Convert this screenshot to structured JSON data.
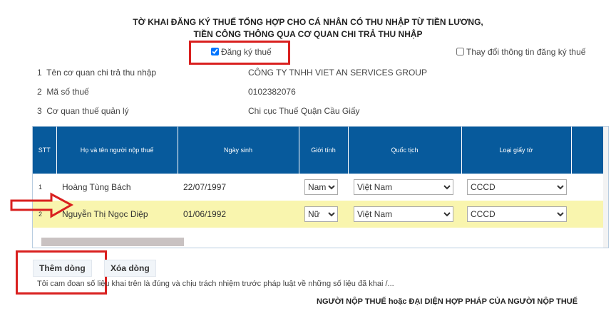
{
  "title": [
    "TỜ KHAI ĐĂNG KÝ THUẾ TỔNG HỢP CHO CÁ NHÂN CÓ THU NHẬP TỪ TIỀN LƯƠNG,",
    "TIỀN CÔNG THÔNG QUA CƠ QUAN CHI TRẢ THU NHẬP"
  ],
  "register": {
    "label": "Đăng ký thuế",
    "checked": true
  },
  "change": {
    "label": "Thay đổi thông tin đăng ký thuế",
    "checked": false
  },
  "info": [
    {
      "no": "1",
      "label": "Tên cơ quan chi trả thu nhập",
      "value": "CÔNG TY TNHH VIET AN SERVICES GROUP"
    },
    {
      "no": "2",
      "label": "Mã số thuế",
      "value": "0102382076"
    },
    {
      "no": "3",
      "label": "Cơ quan thuế quản lý",
      "value": "Chi cục Thuế Quận Cầu Giấy"
    }
  ],
  "table": {
    "headers": [
      "STT",
      "Họ và tên người nộp thuế",
      "Ngày sinh",
      "Giới tính",
      "Quốc tịch",
      "Loại giấy tờ"
    ],
    "rows": [
      {
        "stt": "1",
        "name": "Hoàng Tùng Bách",
        "dob": "22/07/1997",
        "gender": "Nam",
        "nationality": "Việt Nam",
        "doc": "CCCD"
      },
      {
        "stt": "2",
        "name": "Nguyễn Thị Ngọc Diệp",
        "dob": "01/06/1992",
        "gender": "Nữ",
        "nationality": "Việt Nam",
        "doc": "CCCD"
      }
    ]
  },
  "buttons": {
    "add": "Thêm dòng",
    "delete": "Xóa dòng"
  },
  "declaration": "Tôi cam đoan số liệu khai trên là đúng và chịu trách nhiệm trước pháp luật về những số liệu đã khai /...",
  "signature": "NGƯỜI NỘP THUẾ hoặc ĐẠI DIỆN HỢP PHÁP CỦA NGƯỜI NỘP THUẾ",
  "colors": {
    "header": "#075a9c",
    "highlight": "#f9f5ae",
    "annotation": "#d9201f"
  }
}
